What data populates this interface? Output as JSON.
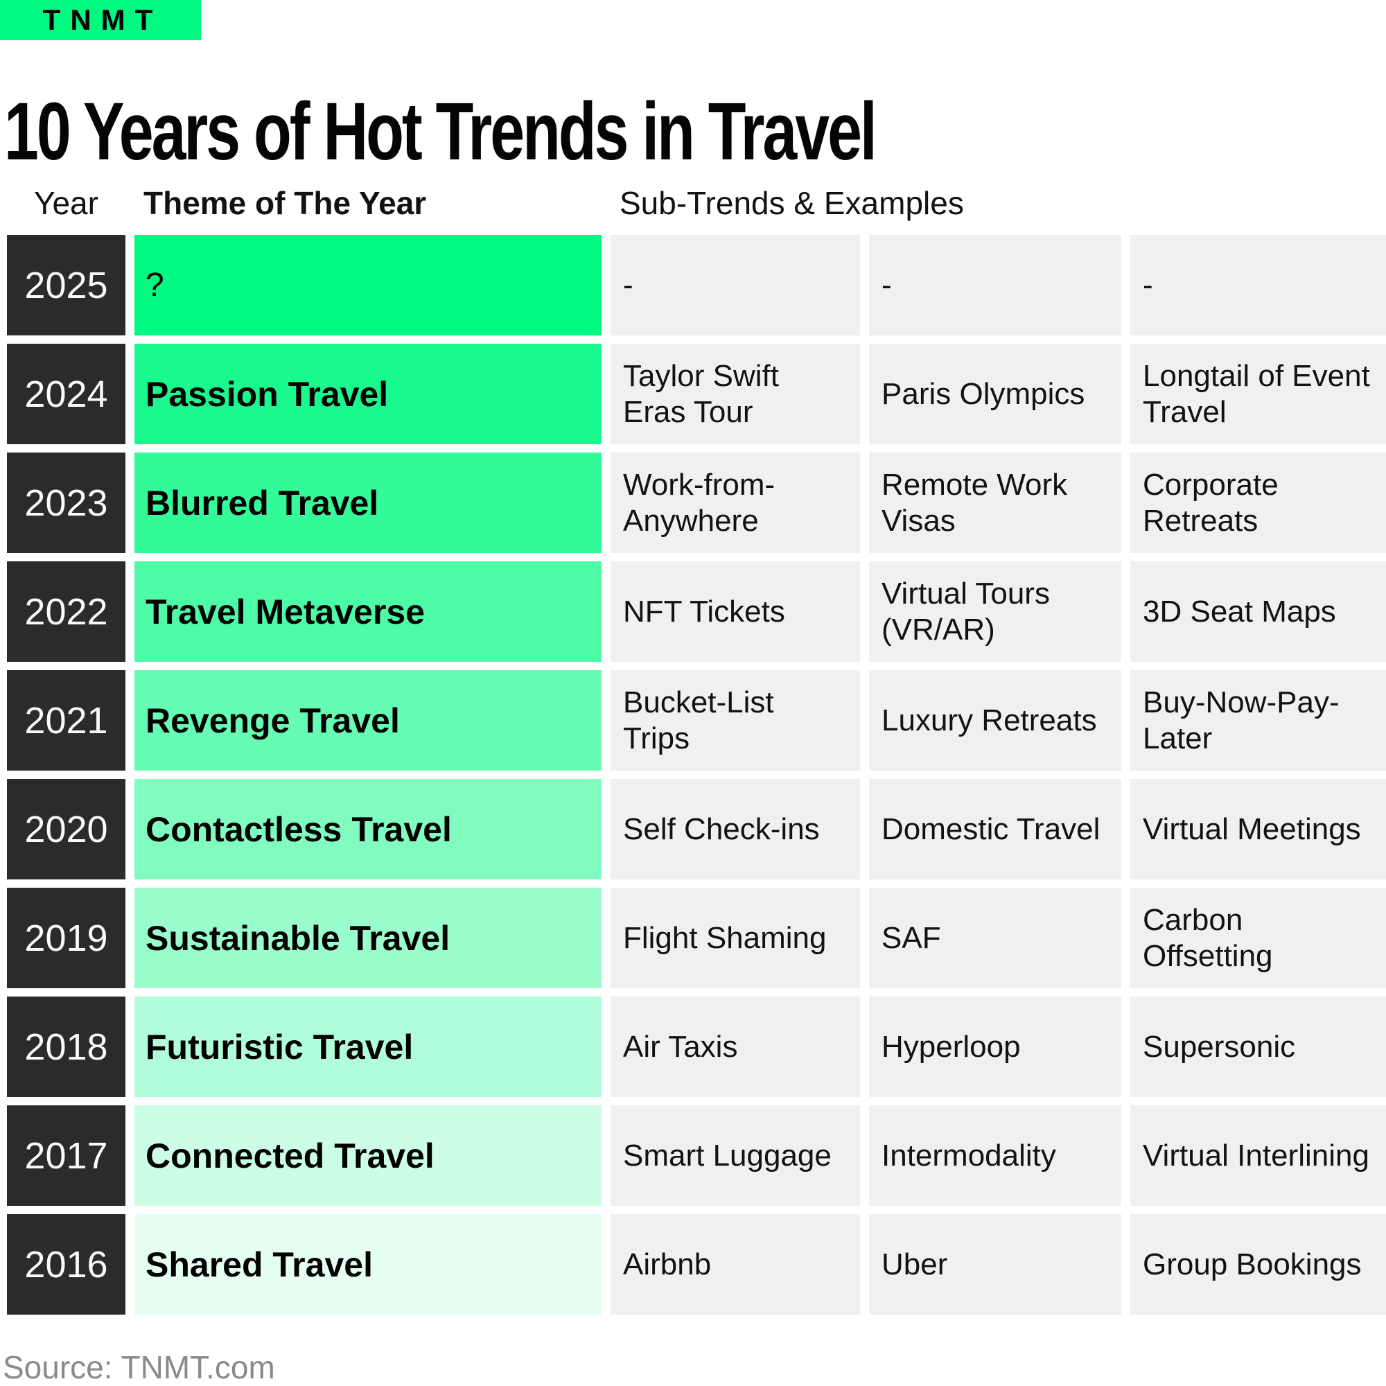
{
  "brand": {
    "logo_text": "TNMT",
    "logo_bg": "#00FA81"
  },
  "title": "10 Years of Hot Trends in Travel",
  "source_note": "Source: TNMT.com",
  "colors": {
    "year_cell_bg": "#2B2B2B",
    "year_cell_text": "#FAFAFA",
    "sub_cell_bg": "#F0F0F0",
    "source_text": "#8A8A8A",
    "accent_green": "#00FA81"
  },
  "table": {
    "headers": {
      "year": "Year",
      "theme": "Theme of The Year",
      "subtrends": "Sub-Trends & Examples"
    },
    "rows": [
      {
        "year": "2025",
        "theme": "?",
        "theme_style": "regular",
        "color": "#00FA81",
        "subs": [
          "-",
          "-",
          "-"
        ]
      },
      {
        "year": "2024",
        "theme": "Passion Travel",
        "theme_style": "bold",
        "color": "#19FA8E",
        "subs": [
          "Taylor Swift Eras Tour",
          "Paris Olympics",
          "Longtail of Event Travel"
        ]
      },
      {
        "year": "2023",
        "theme": "Blurred Travel",
        "theme_style": "bold",
        "color": "#33FB9A",
        "subs": [
          "Work-from-Anywhere",
          "Remote Work Visas",
          "Corporate Retreats"
        ]
      },
      {
        "year": "2022",
        "theme": "Travel Metaverse",
        "theme_style": "bold",
        "color": "#4DFBA7",
        "subs": [
          "NFT Tickets",
          "Virtual Tours (VR/AR)",
          "3D Seat Maps"
        ]
      },
      {
        "year": "2021",
        "theme": "Revenge Travel",
        "theme_style": "bold",
        "color": "#66FCB3",
        "subs": [
          "Bucket-List Trips",
          "Luxury Retreats",
          "Buy-Now-Pay-Later"
        ]
      },
      {
        "year": "2020",
        "theme": "Contactless Travel",
        "theme_style": "bold",
        "color": "#80FCC0",
        "subs": [
          "Self Check-ins",
          "Domestic Travel",
          "Virtual Meetings"
        ]
      },
      {
        "year": "2019",
        "theme": "Sustainable Travel",
        "theme_style": "bold",
        "color": "#99FDCC",
        "subs": [
          "Flight Shaming",
          "SAF",
          "Carbon Offsetting"
        ]
      },
      {
        "year": "2018",
        "theme": "Futuristic Travel",
        "theme_style": "bold",
        "color": "#B2FDD9",
        "subs": [
          "Air Taxis",
          "Hyperloop",
          "Supersonic"
        ]
      },
      {
        "year": "2017",
        "theme": "Connected Travel",
        "theme_style": "bold",
        "color": "#CCFEE6",
        "subs": [
          "Smart Luggage",
          "Intermodality",
          "Virtual Interlining"
        ]
      },
      {
        "year": "2016",
        "theme": "Shared Travel",
        "theme_style": "bold",
        "color": "#E5FEF2",
        "subs": [
          "Airbnb",
          "Uber",
          "Group Bookings"
        ]
      }
    ]
  },
  "chart_data": {
    "type": "table",
    "title": "10 Years of Hot Trends in Travel",
    "columns": [
      "Year",
      "Theme of The Year",
      "Sub-Trend / Example 1",
      "Sub-Trend / Example 2",
      "Sub-Trend / Example 3"
    ],
    "rows": [
      [
        "2025",
        "?",
        "-",
        "-",
        "-"
      ],
      [
        "2024",
        "Passion Travel",
        "Taylor Swift Eras Tour",
        "Paris Olympics",
        "Longtail of Event Travel"
      ],
      [
        "2023",
        "Blurred Travel",
        "Work-from-Anywhere",
        "Remote Work Visas",
        "Corporate Retreats"
      ],
      [
        "2022",
        "Travel Metaverse",
        "NFT Tickets",
        "Virtual Tours (VR/AR)",
        "3D Seat Maps"
      ],
      [
        "2021",
        "Revenge Travel",
        "Bucket-List Trips",
        "Luxury Retreats",
        "Buy-Now-Pay-Later"
      ],
      [
        "2020",
        "Contactless Travel",
        "Self Check-ins",
        "Domestic Travel",
        "Virtual Meetings"
      ],
      [
        "2019",
        "Sustainable Travel",
        "Flight Shaming",
        "SAF",
        "Carbon Offsetting"
      ],
      [
        "2018",
        "Futuristic Travel",
        "Air Taxis",
        "Hyperloop",
        "Supersonic"
      ],
      [
        "2017",
        "Connected Travel",
        "Smart Luggage",
        "Intermodality",
        "Virtual Interlining"
      ],
      [
        "2016",
        "Shared Travel",
        "Airbnb",
        "Uber",
        "Group Bookings"
      ]
    ],
    "layout_hints": {
      "theme_column_gradient": [
        "#00FA81",
        "#E5FEF2"
      ],
      "year_column_bg": "#2B2B2B",
      "subtrend_cells_bg": "#F0F0F0",
      "grid": "off",
      "legend_position": "none"
    }
  }
}
